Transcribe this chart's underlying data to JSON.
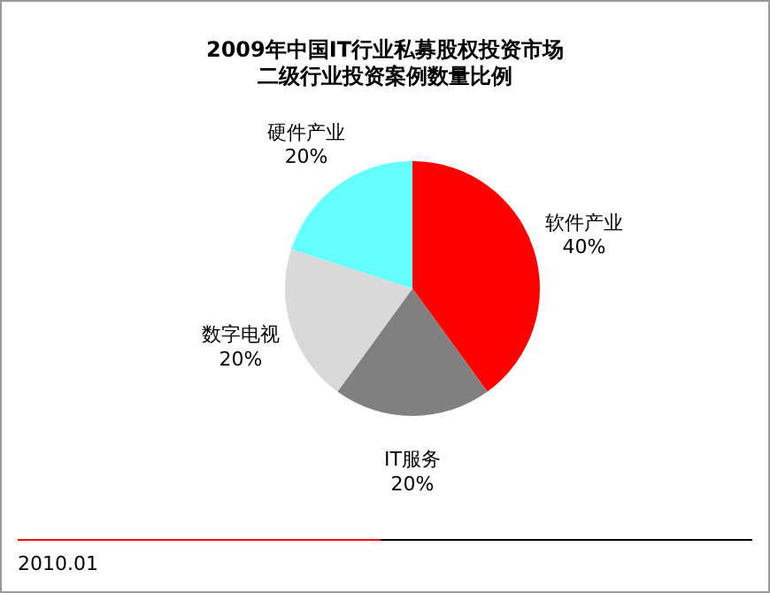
{
  "chart_data": {
    "type": "pie",
    "title": "2009年中国IT行业私募股权投资市场",
    "subtitle": "二级行业投资案例数量比例",
    "categories": [
      "软件产业",
      "IT服务",
      "数字电视",
      "硬件产业"
    ],
    "values": [
      40,
      20,
      20,
      20
    ],
    "value_labels": [
      "40%",
      "20%",
      "20%",
      "20%"
    ],
    "colors": [
      "#ff0000",
      "#808080",
      "#d9d9d9",
      "#66ffff"
    ],
    "annotations": [
      "2010.01"
    ]
  }
}
